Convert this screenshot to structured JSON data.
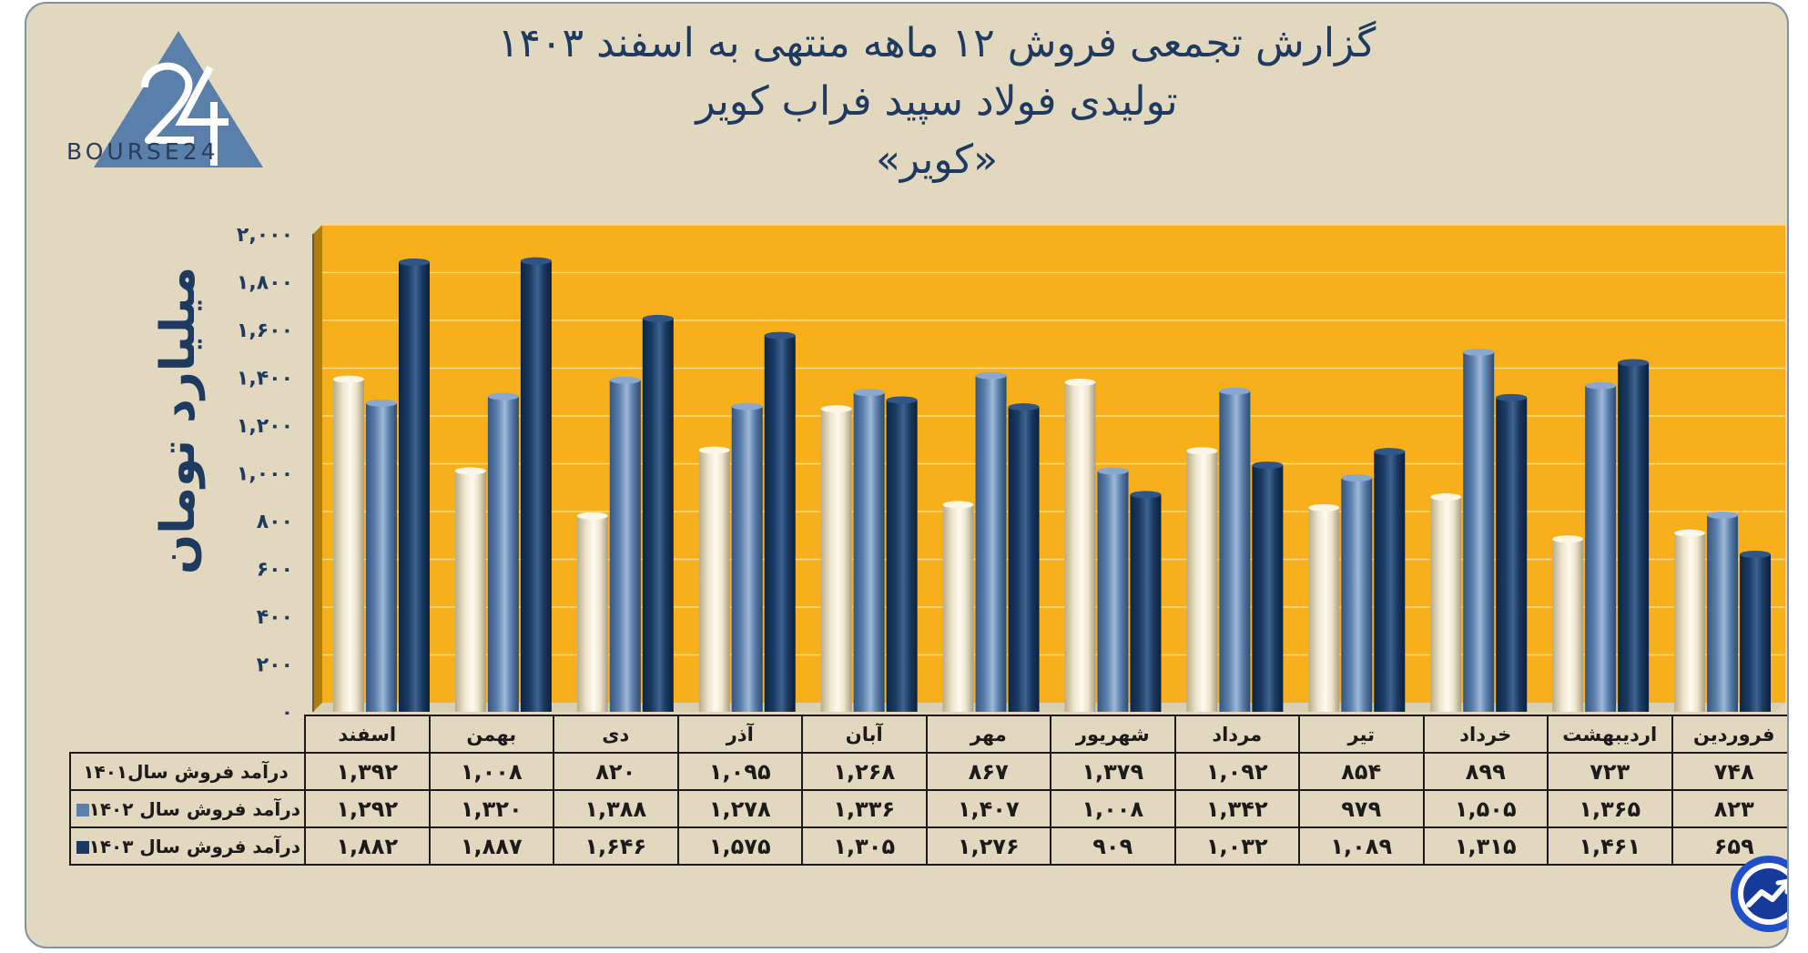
{
  "title": {
    "line1": "گزارش تجمعی فروش ۱۲ ماهه منتهی به اسفند ۱۴۰۳",
    "line2": "تولیدی فولاد سپید فراب کویر",
    "line3": "«کویر»"
  },
  "logo": {
    "text": "BOURSE24"
  },
  "colors": {
    "background": "#e2d8bf",
    "plot": "#f7b01c",
    "series1401": "#ece4cc",
    "series1402": "#5b7fac",
    "series1403": "#1a3a63"
  },
  "chart_data": {
    "type": "bar",
    "title": "",
    "ylabel": "میلیارد تومان",
    "ylim": [
      0,
      2000
    ],
    "yticks": [
      "۰",
      "۲۰۰",
      "۴۰۰",
      "۶۰۰",
      "۸۰۰",
      "۱,۰۰۰",
      "۱,۲۰۰",
      "۱,۴۰۰",
      "۱,۶۰۰",
      "۱,۸۰۰",
      "۲,۰۰۰"
    ],
    "categories": [
      "فروردین",
      "اردیبهشت",
      "خرداد",
      "تیر",
      "مرداد",
      "شهریور",
      "مهر",
      "آبان",
      "آذر",
      "دی",
      "بهمن",
      "اسفند"
    ],
    "series": [
      {
        "name": "درآمد فروش سال۱۴۰۱",
        "values": [
          748,
          723,
          899,
          854,
          1092,
          1379,
          867,
          1268,
          1095,
          820,
          1008,
          1392
        ],
        "labels": [
          "۷۴۸",
          "۷۲۳",
          "۸۹۹",
          "۸۵۴",
          "۱,۰۹۲",
          "۱,۳۷۹",
          "۸۶۷",
          "۱,۲۶۸",
          "۱,۰۹۵",
          "۸۲۰",
          "۱,۰۰۸",
          "۱,۳۹۲"
        ]
      },
      {
        "name": "درآمد فروش سال ۱۴۰۲",
        "values": [
          823,
          1365,
          1505,
          979,
          1342,
          1008,
          1407,
          1336,
          1278,
          1388,
          1320,
          1292
        ],
        "labels": [
          "۸۲۳",
          "۱,۳۶۵",
          "۱,۵۰۵",
          "۹۷۹",
          "۱,۳۴۲",
          "۱,۰۰۸",
          "۱,۴۰۷",
          "۱,۳۳۶",
          "۱,۲۷۸",
          "۱,۳۸۸",
          "۱,۳۲۰",
          "۱,۲۹۲"
        ]
      },
      {
        "name": "درآمد فروش سال ۱۴۰۳",
        "values": [
          659,
          1461,
          1315,
          1089,
          1032,
          909,
          1276,
          1305,
          1575,
          1646,
          1887,
          1882
        ],
        "labels": [
          "۶۵۹",
          "۱,۴۶۱",
          "۱,۳۱۵",
          "۱,۰۸۹",
          "۱,۰۳۲",
          "۹۰۹",
          "۱,۲۷۶",
          "۱,۳۰۵",
          "۱,۵۷۵",
          "۱,۶۴۶",
          "۱,۸۸۷",
          "۱,۸۸۲"
        ]
      }
    ]
  }
}
